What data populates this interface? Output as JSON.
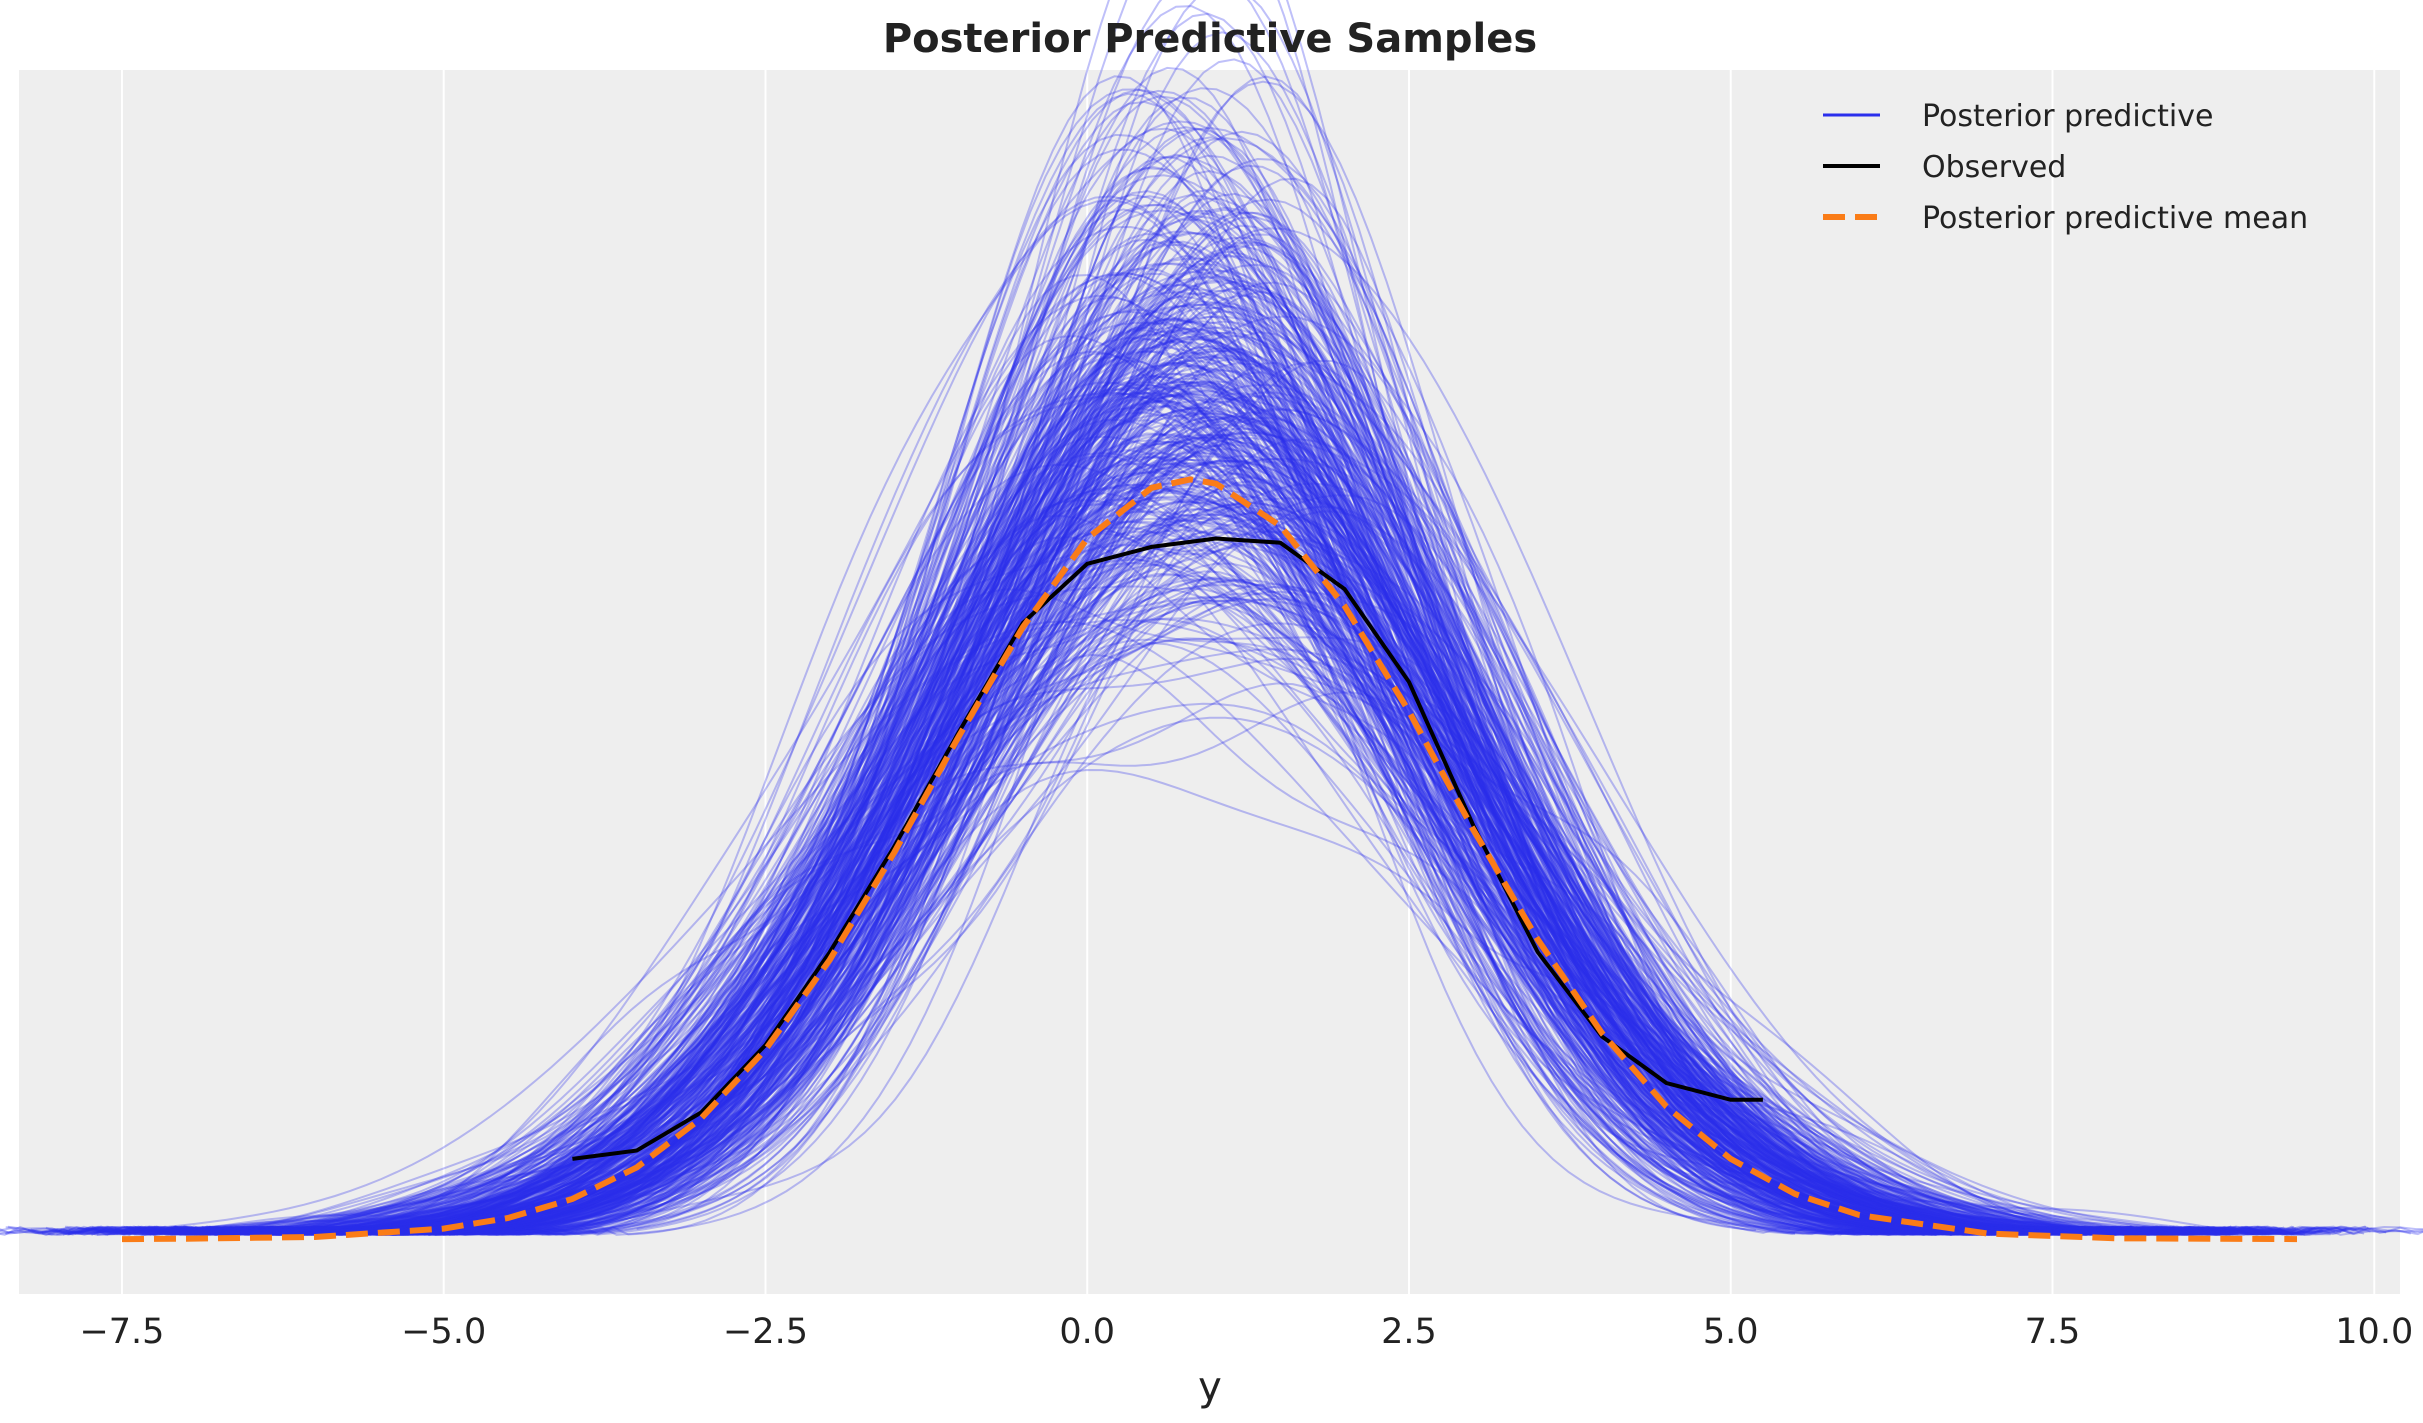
{
  "chart_data": {
    "type": "line",
    "title": "Posterior Predictive Samples",
    "xlabel": "y",
    "ylabel": "",
    "xlim": [
      -8.3,
      10.2
    ],
    "ylim": [
      -0.013,
      0.277
    ],
    "xticks": [
      -7.5,
      -5.0,
      -2.5,
      0.0,
      2.5,
      5.0,
      7.5,
      10.0
    ],
    "xtick_labels": [
      "−7.5",
      "−5.0",
      "−2.5",
      "0.0",
      "2.5",
      "5.0",
      "7.5",
      "10.0"
    ],
    "yticks_visible": false,
    "grid": "vertical",
    "background": "#eeeeee",
    "legend_position": "top-right",
    "series": [
      {
        "name": "Posterior predictive",
        "color": "#2a2eec",
        "style": "solid",
        "kind": "many-sample-kde"
      },
      {
        "name": "Observed",
        "color": "#000000",
        "style": "solid",
        "x": [
          -4.0,
          -3.5,
          -3.0,
          -2.5,
          -2.0,
          -1.5,
          -1.0,
          -0.5,
          0.0,
          0.5,
          1.0,
          1.5,
          2.0,
          2.5,
          3.0,
          3.5,
          4.0,
          4.5,
          5.0,
          5.25
        ],
        "y": [
          0.019,
          0.021,
          0.03,
          0.046,
          0.068,
          0.093,
          0.12,
          0.146,
          0.16,
          0.164,
          0.166,
          0.165,
          0.154,
          0.132,
          0.098,
          0.068,
          0.048,
          0.037,
          0.033,
          0.033
        ]
      },
      {
        "name": "Posterior predictive mean",
        "color": "#fa7c17",
        "style": "dashed",
        "x": [
          -7.5,
          -7.0,
          -6.0,
          -5.0,
          -4.5,
          -4.0,
          -3.5,
          -3.0,
          -2.5,
          -2.0,
          -1.5,
          -1.0,
          -0.5,
          0.0,
          0.5,
          0.8,
          1.0,
          1.5,
          2.0,
          2.5,
          3.0,
          3.5,
          4.0,
          4.5,
          5.0,
          5.5,
          6.0,
          7.0,
          8.0,
          9.4
        ],
        "y": [
          0.0,
          0.0001,
          0.0005,
          0.0025,
          0.005,
          0.0095,
          0.017,
          0.0286,
          0.0449,
          0.0662,
          0.0916,
          0.119,
          0.145,
          0.166,
          0.178,
          0.18,
          0.179,
          0.169,
          0.15,
          0.125,
          0.097,
          0.071,
          0.0488,
          0.0314,
          0.019,
          0.0107,
          0.0057,
          0.0013,
          0.0002,
          0.0
        ]
      }
    ]
  }
}
